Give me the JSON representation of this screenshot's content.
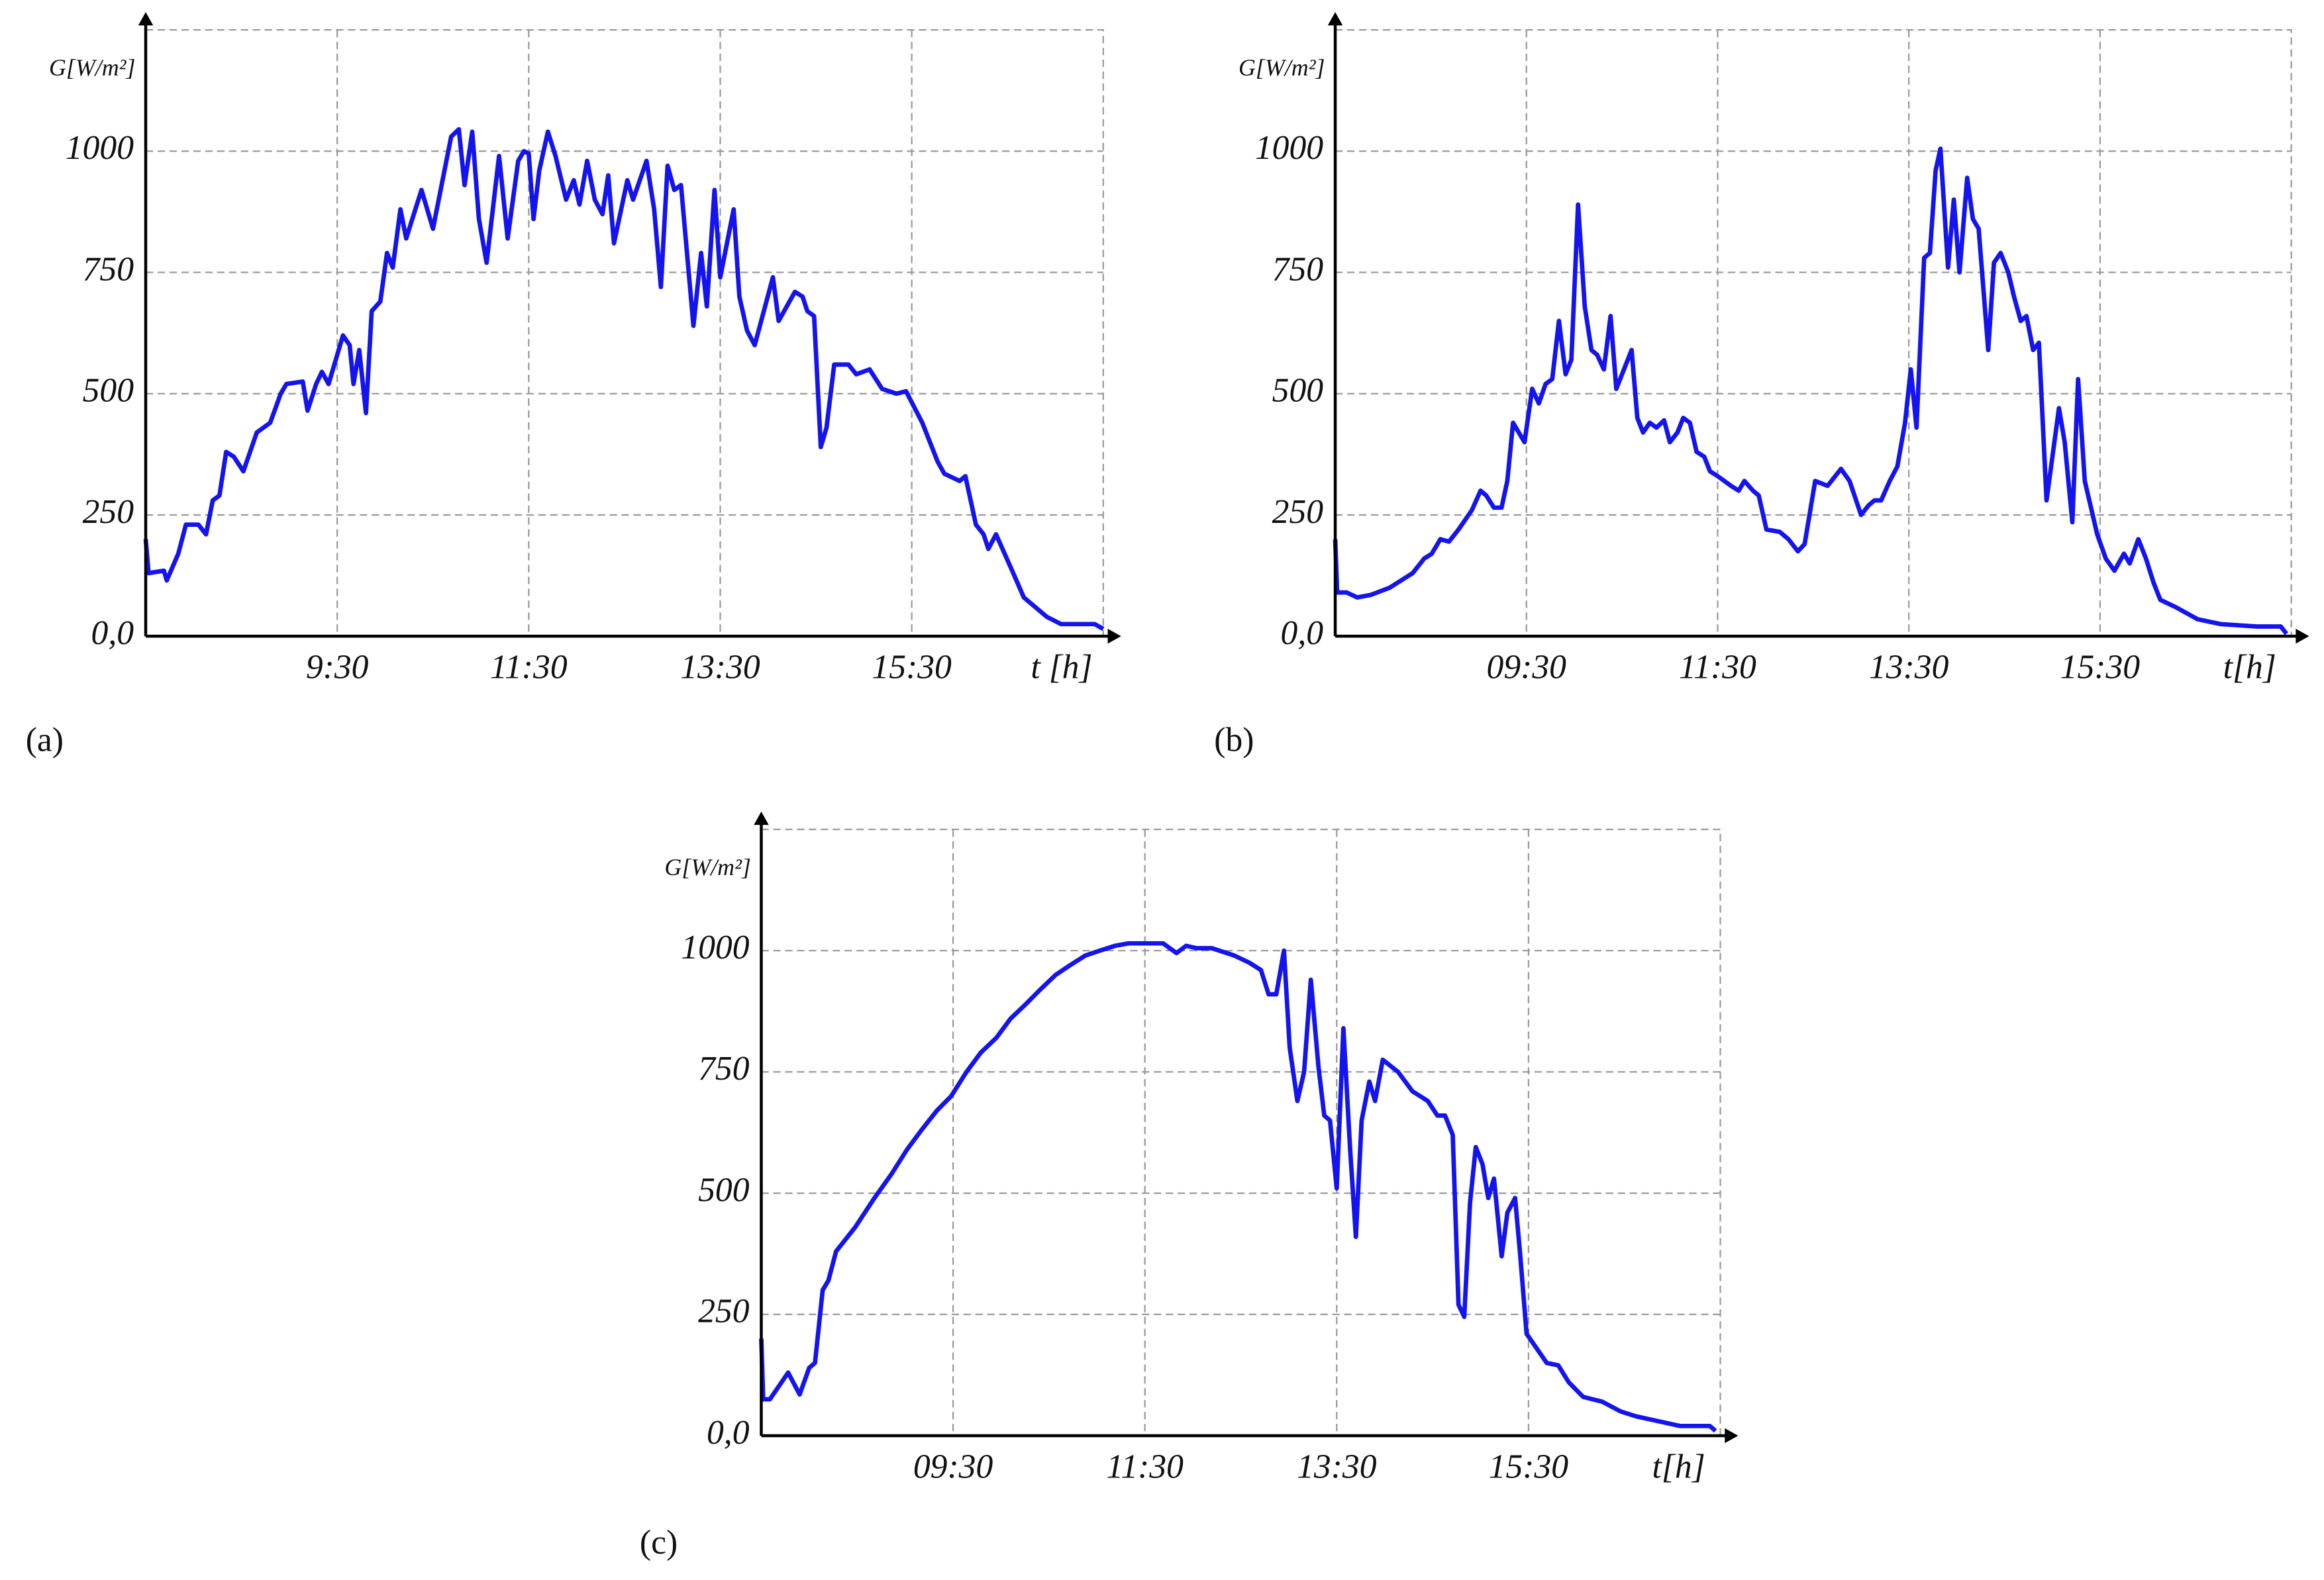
{
  "chart_data": [
    {
      "type": "line",
      "panel": "(a)",
      "ylabel": "G[W/m²]",
      "xlabel": "t [h]",
      "color": "#1414f0",
      "grid": true,
      "xlim": [
        7.5,
        17.5
      ],
      "ylim": [
        0,
        1250
      ],
      "xticks": [
        {
          "value": 9.5,
          "label": "9:30"
        },
        {
          "value": 11.5,
          "label": "11:30"
        },
        {
          "value": 13.5,
          "label": "13:30"
        },
        {
          "value": 15.5,
          "label": "15:30"
        }
      ],
      "yticks": [
        {
          "value": 0,
          "label": "0,0"
        },
        250,
        500,
        750,
        1000
      ],
      "x": [
        7.5,
        7.53,
        7.69,
        7.72,
        7.84,
        7.92,
        8.05,
        8.13,
        8.2,
        8.27,
        8.34,
        8.42,
        8.52,
        8.66,
        8.8,
        8.91,
        8.97,
        9.14,
        9.19,
        9.28,
        9.34,
        9.41,
        9.56,
        9.63,
        9.67,
        9.73,
        9.8,
        9.86,
        9.95,
        10.02,
        10.08,
        10.16,
        10.22,
        10.38,
        10.5,
        10.69,
        10.77,
        10.83,
        10.91,
        10.98,
        11.06,
        11.19,
        11.28,
        11.39,
        11.45,
        11.5,
        11.55,
        11.61,
        11.7,
        11.78,
        11.89,
        11.97,
        12.03,
        12.11,
        12.19,
        12.27,
        12.33,
        12.39,
        12.53,
        12.59,
        12.73,
        12.81,
        12.88,
        12.95,
        13.02,
        13.09,
        13.22,
        13.3,
        13.36,
        13.44,
        13.5,
        13.64,
        13.7,
        13.78,
        13.86,
        14.05,
        14.11,
        14.28,
        14.36,
        14.41,
        14.48,
        14.55,
        14.61,
        14.69,
        14.84,
        14.92,
        15.06,
        15.19,
        15.34,
        15.44,
        15.61,
        15.77,
        15.84,
        16.0,
        16.06,
        16.17,
        16.25,
        16.3,
        16.38,
        16.56,
        16.67,
        16.91,
        17.06,
        17.41,
        17.5
      ],
      "values": [
        200,
        130,
        135,
        115,
        170,
        230,
        230,
        210,
        280,
        290,
        380,
        370,
        340,
        420,
        440,
        500,
        520,
        525,
        465,
        520,
        545,
        520,
        620,
        600,
        520,
        590,
        460,
        670,
        690,
        790,
        760,
        880,
        820,
        920,
        840,
        1030,
        1045,
        930,
        1040,
        860,
        770,
        990,
        820,
        980,
        1000,
        995,
        860,
        960,
        1040,
        990,
        900,
        940,
        890,
        980,
        900,
        870,
        950,
        810,
        940,
        900,
        980,
        880,
        720,
        970,
        920,
        930,
        640,
        790,
        680,
        920,
        740,
        880,
        700,
        630,
        600,
        740,
        650,
        710,
        700,
        670,
        660,
        390,
        430,
        560,
        560,
        540,
        550,
        510,
        500,
        505,
        440,
        360,
        335,
        320,
        330,
        230,
        210,
        180,
        210,
        130,
        80,
        40,
        25,
        25,
        15
      ]
    },
    {
      "type": "line",
      "panel": "(b)",
      "ylabel": "G[W/m²]",
      "xlabel": "t[h]",
      "color": "#1414f0",
      "grid": true,
      "xlim": [
        7.5,
        17.5
      ],
      "ylim": [
        0,
        1250
      ],
      "xticks": [
        {
          "value": 9.5,
          "label": "09:30"
        },
        {
          "value": 11.5,
          "label": "11:30"
        },
        {
          "value": 13.5,
          "label": "13:30"
        },
        {
          "value": 15.5,
          "label": "15:30"
        }
      ],
      "yticks": [
        {
          "value": 0,
          "label": "0,0"
        },
        250,
        500,
        750,
        1000
      ],
      "x": [
        7.5,
        7.52,
        7.62,
        7.73,
        7.87,
        8.07,
        8.23,
        8.31,
        8.43,
        8.51,
        8.6,
        8.69,
        8.79,
        8.93,
        9.02,
        9.08,
        9.16,
        9.24,
        9.3,
        9.36,
        9.48,
        9.56,
        9.63,
        9.7,
        9.77,
        9.84,
        9.91,
        9.97,
        10.04,
        10.11,
        10.18,
        10.24,
        10.31,
        10.38,
        10.44,
        10.52,
        10.6,
        10.66,
        10.72,
        10.79,
        10.86,
        10.94,
        11.0,
        11.08,
        11.14,
        11.21,
        11.28,
        11.36,
        11.42,
        11.5,
        11.64,
        11.72,
        11.78,
        11.87,
        11.93,
        12.01,
        12.15,
        12.24,
        12.34,
        12.41,
        12.52,
        12.65,
        12.79,
        12.88,
        13.0,
        13.08,
        13.14,
        13.21,
        13.3,
        13.38,
        13.46,
        13.52,
        13.58,
        13.66,
        13.72,
        13.78,
        13.83,
        13.91,
        13.97,
        14.03,
        14.11,
        14.17,
        14.23,
        14.33,
        14.39,
        14.46,
        14.54,
        14.6,
        14.67,
        14.73,
        14.8,
        14.86,
        14.94,
        15.07,
        15.13,
        15.21,
        15.27,
        15.34,
        15.47,
        15.56,
        15.65,
        15.75,
        15.81,
        15.9,
        15.98,
        16.06,
        16.13,
        16.29,
        16.52,
        16.76,
        17.14,
        17.39,
        17.45
      ],
      "values": [
        200,
        90,
        90,
        80,
        85,
        100,
        120,
        130,
        160,
        170,
        200,
        195,
        220,
        260,
        300,
        290,
        265,
        265,
        320,
        440,
        400,
        510,
        480,
        520,
        530,
        650,
        540,
        570,
        890,
        680,
        590,
        580,
        550,
        660,
        510,
        550,
        590,
        450,
        420,
        440,
        430,
        445,
        400,
        420,
        450,
        440,
        380,
        370,
        340,
        330,
        310,
        300,
        320,
        300,
        290,
        220,
        215,
        200,
        175,
        190,
        320,
        310,
        345,
        320,
        250,
        270,
        280,
        280,
        320,
        350,
        440,
        550,
        430,
        780,
        790,
        960,
        1005,
        760,
        900,
        750,
        945,
        860,
        840,
        590,
        770,
        790,
        750,
        700,
        650,
        660,
        590,
        605,
        280,
        470,
        400,
        235,
        530,
        320,
        210,
        160,
        135,
        170,
        150,
        200,
        160,
        110,
        75,
        60,
        35,
        25,
        20,
        20,
        5
      ]
    },
    {
      "type": "line",
      "panel": "(c)",
      "ylabel": "G[W/m²]",
      "xlabel": "t[h]",
      "color": "#1414f0",
      "grid": true,
      "xlim": [
        7.5,
        17.5
      ],
      "ylim": [
        0,
        1250
      ],
      "xticks": [
        {
          "value": 9.5,
          "label": "09:30"
        },
        {
          "value": 11.5,
          "label": "11:30"
        },
        {
          "value": 13.5,
          "label": "13:30"
        },
        {
          "value": 15.5,
          "label": "15:30"
        }
      ],
      "yticks": [
        {
          "value": 0,
          "label": "0,0"
        },
        250,
        500,
        750,
        1000
      ],
      "x": [
        7.5,
        7.52,
        7.59,
        7.78,
        7.9,
        8.0,
        8.06,
        8.14,
        8.2,
        8.28,
        8.48,
        8.68,
        8.86,
        9.02,
        9.17,
        9.33,
        9.48,
        9.64,
        9.79,
        9.95,
        10.1,
        10.26,
        10.41,
        10.57,
        10.72,
        10.88,
        11.03,
        11.19,
        11.33,
        11.5,
        11.69,
        11.83,
        11.93,
        12.04,
        12.2,
        12.43,
        12.59,
        12.71,
        12.79,
        12.87,
        12.95,
        13.01,
        13.09,
        13.16,
        13.23,
        13.31,
        13.37,
        13.43,
        13.5,
        13.57,
        13.64,
        13.7,
        13.76,
        13.84,
        13.9,
        13.98,
        14.14,
        14.29,
        14.45,
        14.55,
        14.63,
        14.71,
        14.77,
        14.83,
        14.89,
        14.95,
        15.02,
        15.08,
        15.14,
        15.22,
        15.28,
        15.36,
        15.41,
        15.48,
        15.69,
        15.81,
        15.92,
        16.07,
        16.27,
        16.46,
        16.62,
        16.85,
        17.08,
        17.39,
        17.45
      ],
      "values": [
        200,
        75,
        75,
        130,
        85,
        140,
        150,
        300,
        320,
        380,
        430,
        490,
        540,
        590,
        630,
        670,
        700,
        750,
        790,
        820,
        860,
        890,
        920,
        950,
        970,
        990,
        1000,
        1010,
        1015,
        1015,
        1015,
        995,
        1010,
        1005,
        1005,
        990,
        975,
        960,
        910,
        910,
        1000,
        800,
        690,
        750,
        940,
        760,
        660,
        650,
        510,
        840,
        590,
        410,
        650,
        730,
        690,
        775,
        750,
        710,
        690,
        660,
        660,
        620,
        270,
        245,
        480,
        595,
        560,
        490,
        530,
        370,
        460,
        490,
        380,
        210,
        150,
        145,
        110,
        80,
        70,
        50,
        40,
        30,
        20,
        20,
        10
      ]
    }
  ]
}
